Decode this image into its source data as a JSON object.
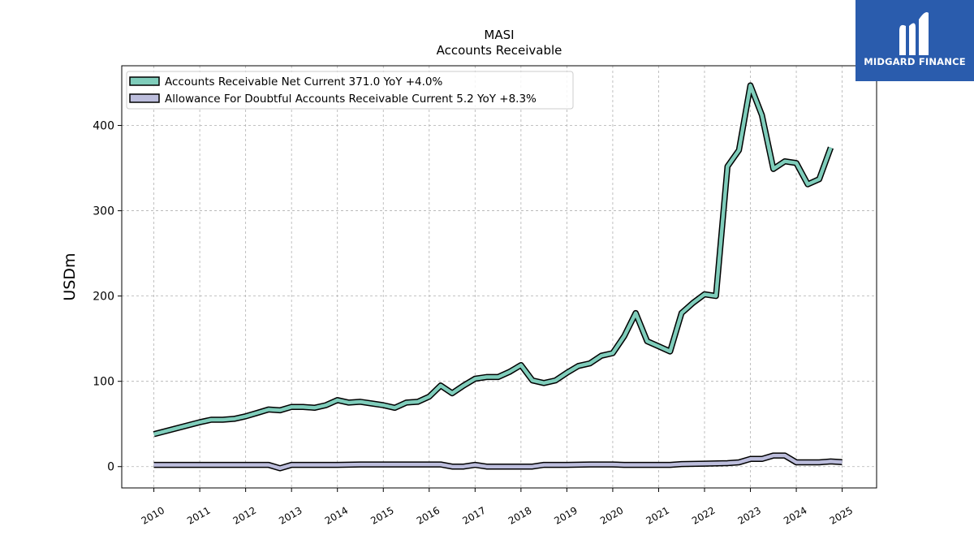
{
  "chart_data": {
    "type": "line",
    "title": "MASI",
    "subtitle": "Accounts Receivable",
    "ylabel": "USDm",
    "xlabel": "",
    "x_tick_labels": [
      "2010",
      "2011",
      "2012",
      "2013",
      "2014",
      "2015",
      "2016",
      "2017",
      "2018",
      "2019",
      "2020",
      "2021",
      "2022",
      "2023",
      "2024",
      "2025"
    ],
    "y_tick_labels": [
      "0",
      "100",
      "200",
      "300",
      "400"
    ],
    "xlim": [
      2009.3,
      2025.75
    ],
    "ylim": [
      -25,
      470
    ],
    "grid": true,
    "legend_position": "upper-left",
    "series": [
      {
        "name": "Accounts Receivable Net Current  371.0 YoY +4.0%",
        "color": "#7fcdbb",
        "points": [
          [
            2010.0,
            38
          ],
          [
            2011.0,
            52
          ],
          [
            2011.25,
            55
          ],
          [
            2011.5,
            55
          ],
          [
            2011.75,
            56
          ],
          [
            2012.0,
            59
          ],
          [
            2012.25,
            63
          ],
          [
            2012.5,
            67
          ],
          [
            2012.75,
            66
          ],
          [
            2013.0,
            70
          ],
          [
            2013.25,
            70
          ],
          [
            2013.5,
            69
          ],
          [
            2013.75,
            72
          ],
          [
            2014.0,
            78
          ],
          [
            2014.25,
            75
          ],
          [
            2014.5,
            76
          ],
          [
            2014.75,
            74
          ],
          [
            2015.0,
            72
          ],
          [
            2015.25,
            69
          ],
          [
            2015.5,
            75
          ],
          [
            2015.75,
            76
          ],
          [
            2016.0,
            82
          ],
          [
            2016.25,
            95
          ],
          [
            2016.5,
            86
          ],
          [
            2016.75,
            95
          ],
          [
            2017.0,
            103
          ],
          [
            2017.25,
            105
          ],
          [
            2017.5,
            105
          ],
          [
            2017.75,
            111
          ],
          [
            2018.0,
            119
          ],
          [
            2018.25,
            101
          ],
          [
            2018.5,
            98
          ],
          [
            2018.75,
            101
          ],
          [
            2019.0,
            110
          ],
          [
            2019.25,
            118
          ],
          [
            2019.5,
            121
          ],
          [
            2019.75,
            130
          ],
          [
            2020.0,
            133
          ],
          [
            2020.25,
            153
          ],
          [
            2020.5,
            180
          ],
          [
            2020.75,
            147
          ],
          [
            2021.0,
            141
          ],
          [
            2021.25,
            135
          ],
          [
            2021.5,
            180
          ],
          [
            2021.75,
            192
          ],
          [
            2022.0,
            202
          ],
          [
            2022.25,
            200
          ],
          [
            2022.5,
            352
          ],
          [
            2022.75,
            371
          ],
          [
            2023.0,
            447
          ],
          [
            2023.25,
            412
          ],
          [
            2023.5,
            349
          ],
          [
            2023.75,
            358
          ],
          [
            2024.0,
            356
          ],
          [
            2024.25,
            331
          ],
          [
            2024.5,
            337
          ],
          [
            2024.75,
            374
          ]
        ]
      },
      {
        "name": "Allowance For Doubtful Accounts Receivable Current  5.2 YoY +8.3%",
        "color": "#bcbddc",
        "points": [
          [
            2010.0,
            2
          ],
          [
            2011.0,
            2
          ],
          [
            2012.0,
            2
          ],
          [
            2012.5,
            2
          ],
          [
            2012.75,
            -2
          ],
          [
            2013.0,
            2
          ],
          [
            2013.25,
            2
          ],
          [
            2014.0,
            2
          ],
          [
            2014.5,
            2.5
          ],
          [
            2015.0,
            2.5
          ],
          [
            2015.5,
            2.5
          ],
          [
            2016.0,
            2.5
          ],
          [
            2016.25,
            2.5
          ],
          [
            2016.5,
            0
          ],
          [
            2016.75,
            0
          ],
          [
            2017.0,
            2
          ],
          [
            2017.25,
            0
          ],
          [
            2018.0,
            0
          ],
          [
            2018.25,
            0
          ],
          [
            2018.5,
            2
          ],
          [
            2019.0,
            2
          ],
          [
            2019.5,
            2.5
          ],
          [
            2020.0,
            2.5
          ],
          [
            2020.25,
            2
          ],
          [
            2021.0,
            2
          ],
          [
            2021.25,
            2
          ],
          [
            2021.5,
            3
          ],
          [
            2022.0,
            3.5
          ],
          [
            2022.5,
            4
          ],
          [
            2022.75,
            5
          ],
          [
            2023.0,
            9
          ],
          [
            2023.25,
            9
          ],
          [
            2023.5,
            13
          ],
          [
            2023.75,
            13
          ],
          [
            2024.0,
            5
          ],
          [
            2024.25,
            5
          ],
          [
            2024.5,
            5
          ],
          [
            2024.75,
            6
          ],
          [
            2025.0,
            5.2
          ]
        ]
      }
    ]
  },
  "logo": {
    "text": "MIDGARD FINANCE",
    "icon": "midgard-finance-logo-icon"
  }
}
